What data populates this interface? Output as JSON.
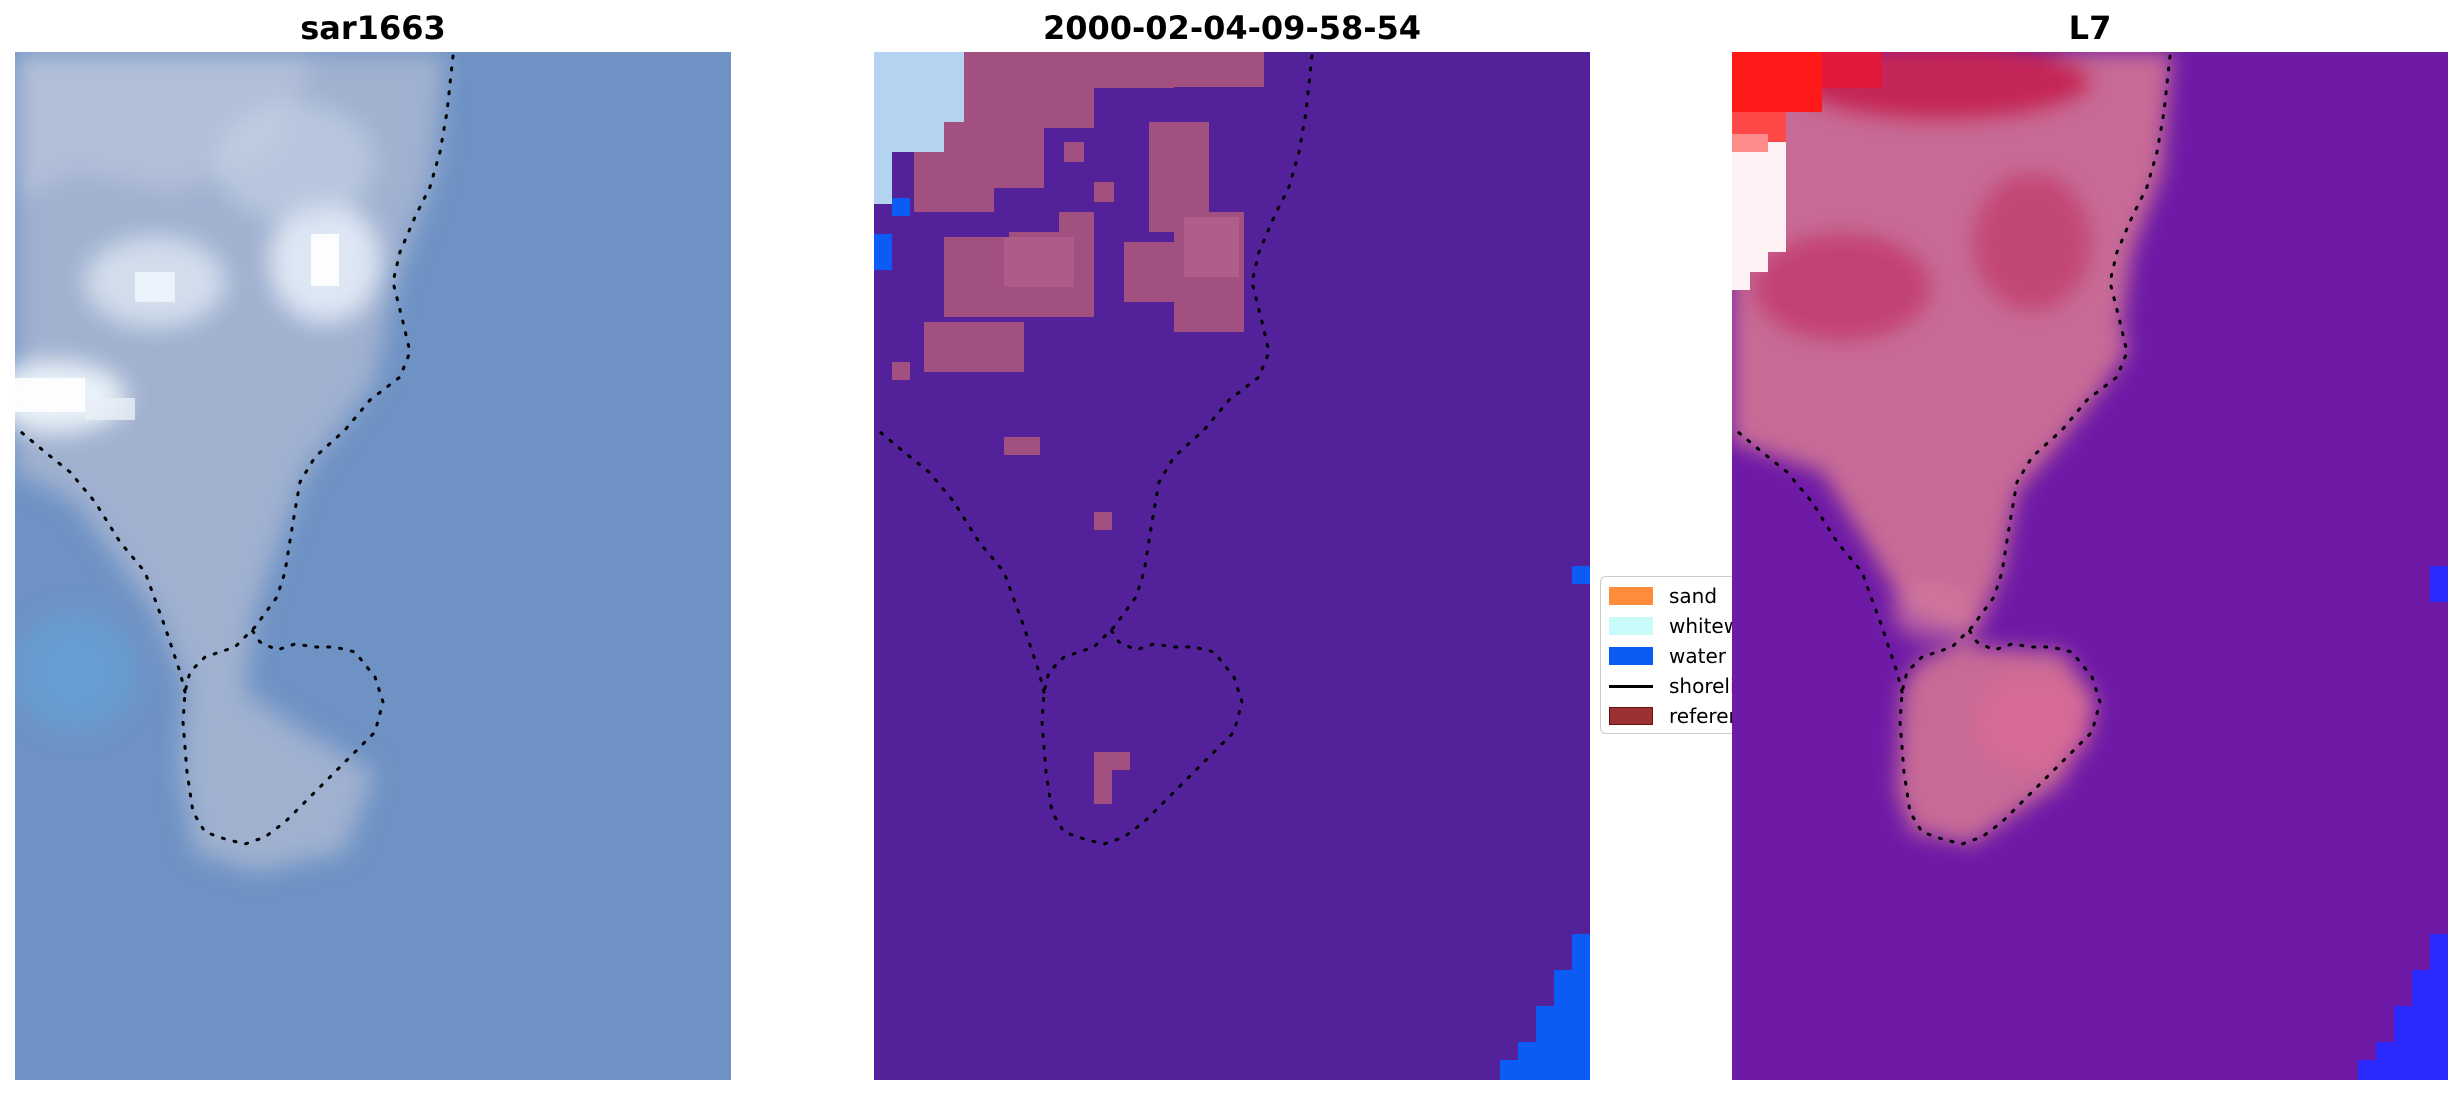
{
  "chart_data": [
    {
      "type": "image",
      "title": "sar1663",
      "description_of_layers": [
        "satellite-rgb",
        "shoreline-dots"
      ],
      "colors": {
        "base": "#6e92c4",
        "bright": "#f4f8ff",
        "shoreline": "#000000"
      },
      "grid": false
    },
    {
      "type": "image",
      "title": "2000-02-04-09-58-54",
      "colors": {
        "background": "#53229a",
        "land": "#a1507f",
        "water": "#0a5cf5",
        "corner": "#b4d3f0",
        "shoreline": "#000000"
      },
      "grid": false
    },
    {
      "type": "image",
      "title": "L7",
      "colors": {
        "background": "#6e1aa6",
        "land": "#c76b96",
        "red": "#ff1a1a",
        "white": "#fff2f4",
        "water": "#2b2bff",
        "shoreline": "#000000"
      },
      "grid": false
    }
  ],
  "legend": {
    "placement": "center-right",
    "items": [
      {
        "label": "sand",
        "color": "#ff8c3a",
        "kind": "patch"
      },
      {
        "label": "whitewater",
        "color": "#c9fbfb",
        "kind": "patch"
      },
      {
        "label": "water",
        "color": "#0a5cf5",
        "kind": "patch"
      },
      {
        "label": "shoreline",
        "color": "#000000",
        "kind": "line"
      },
      {
        "label": "reference shoreline",
        "color": "#9b3030",
        "kind": "patch"
      }
    ]
  }
}
